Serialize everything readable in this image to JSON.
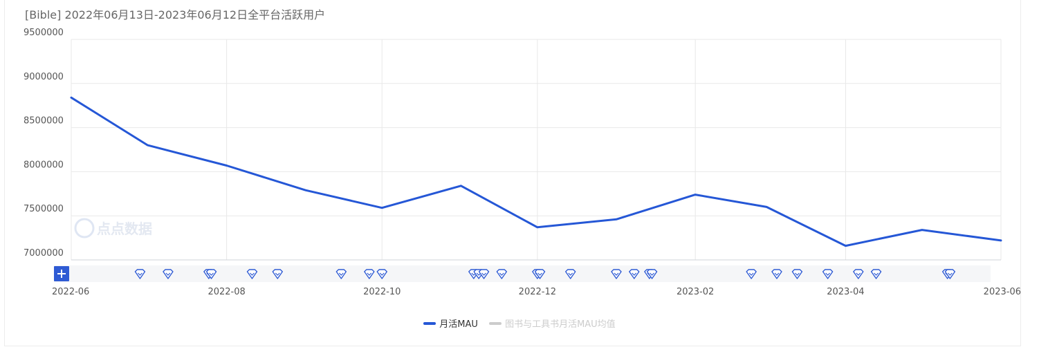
{
  "title": "[Bible]  2022年06月13日-2023年06月12日全平台活跃用户",
  "watermark": "点点数据",
  "colors": {
    "series": "#2557d6",
    "inactive": "#cccccc",
    "grid": "#e8e8e8",
    "navigator_bg": "#f5f6f8",
    "marker": "#2f5bd4"
  },
  "chart_data": {
    "type": "line",
    "title": "[Bible]  2022年06月13日-2023年06月12日全平台活跃用户",
    "ylim": [
      7000000,
      9500000
    ],
    "y_ticks": [
      "9500000",
      "9000000",
      "8500000",
      "8000000",
      "7500000",
      "7000000"
    ],
    "x_ticks": [
      "2022-06",
      "2022-08",
      "2022-10",
      "2022-12",
      "2023-02",
      "2023-04",
      "2023-06"
    ],
    "series": [
      {
        "name": "月活MAU",
        "active": true,
        "points": [
          {
            "x": "2022-06-01",
            "y": 8840000
          },
          {
            "x": "2022-07-01",
            "y": 8300000
          },
          {
            "x": "2022-08-01",
            "y": 8070000
          },
          {
            "x": "2022-09-01",
            "y": 7790000
          },
          {
            "x": "2022-10-01",
            "y": 7590000
          },
          {
            "x": "2022-11-01",
            "y": 7840000
          },
          {
            "x": "2022-12-01",
            "y": 7370000
          },
          {
            "x": "2023-01-01",
            "y": 7460000
          },
          {
            "x": "2023-02-01",
            "y": 7740000
          },
          {
            "x": "2023-03-01",
            "y": 7600000
          },
          {
            "x": "2023-04-01",
            "y": 7160000
          },
          {
            "x": "2023-05-01",
            "y": 7340000
          },
          {
            "x": "2023-06-01",
            "y": 7220000
          }
        ]
      },
      {
        "name": "图书与工具书月活MAU均值",
        "active": false,
        "points": []
      }
    ],
    "event_markers": [
      "2022-06-28",
      "2022-07-09",
      "2022-07-25",
      "2022-07-26",
      "2022-08-11",
      "2022-08-21",
      "2022-09-15",
      "2022-09-26",
      "2022-10-01",
      "2022-11-06",
      "2022-11-08",
      "2022-11-10",
      "2022-11-17",
      "2022-12-01",
      "2022-12-02",
      "2022-12-14",
      "2023-01-01",
      "2023-01-08",
      "2023-01-14",
      "2023-01-15",
      "2023-02-23",
      "2023-03-05",
      "2023-03-13",
      "2023-03-25",
      "2023-04-06",
      "2023-04-13",
      "2023-05-11",
      "2023-05-12"
    ]
  }
}
